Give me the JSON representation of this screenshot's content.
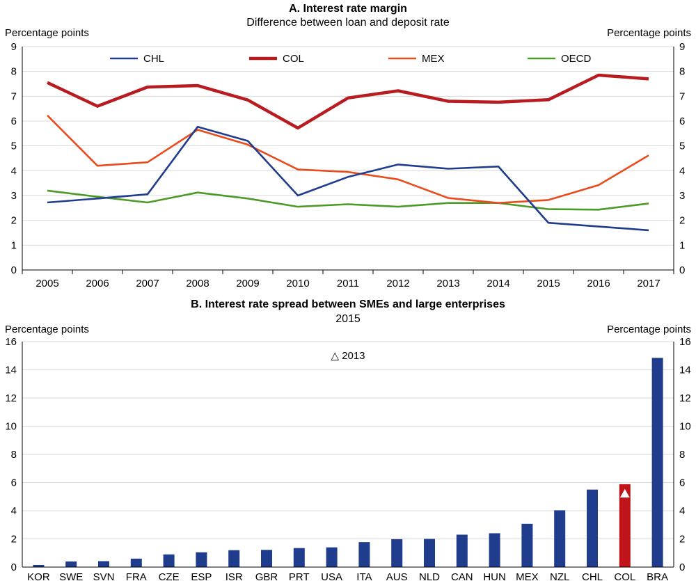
{
  "chart_data": [
    {
      "type": "line",
      "title": "A. Interest rate margin",
      "subtitle": "Difference between loan and deposit rate",
      "ylabel_left": "Percentage points",
      "ylabel_right": "Percentage points",
      "ylim": [
        0,
        9
      ],
      "yticks": [
        "0",
        "1",
        "2",
        "3",
        "4",
        "5",
        "6",
        "7",
        "8",
        "9"
      ],
      "grid": true,
      "legend_position": "top",
      "x": [
        "2005",
        "2006",
        "2007",
        "2008",
        "2009",
        "2010",
        "2011",
        "2012",
        "2013",
        "2014",
        "2015",
        "2016",
        "2017"
      ],
      "series": [
        {
          "name": "CHL",
          "color": "#1f3d8c",
          "values": [
            2.72,
            2.88,
            3.05,
            5.77,
            5.2,
            3.0,
            3.75,
            4.25,
            4.08,
            4.17,
            1.9,
            1.75,
            1.6
          ]
        },
        {
          "name": "COL",
          "color": "#b81c21",
          "values": [
            7.55,
            6.6,
            7.37,
            7.43,
            6.85,
            5.72,
            6.93,
            7.22,
            6.8,
            6.76,
            6.86,
            7.85,
            7.7
          ]
        },
        {
          "name": "MEX",
          "color": "#ea4b1c",
          "values": [
            6.23,
            4.2,
            4.34,
            5.65,
            5.05,
            4.05,
            3.95,
            3.65,
            2.9,
            2.7,
            2.82,
            3.42,
            4.62
          ]
        },
        {
          "name": "OECD",
          "color": "#4d9a27",
          "values": [
            3.2,
            2.95,
            2.72,
            3.12,
            2.88,
            2.55,
            2.65,
            2.55,
            2.7,
            2.7,
            2.45,
            2.43,
            2.68
          ]
        }
      ]
    },
    {
      "type": "bar",
      "title": "B. Interest rate spread between SMEs and large enterprises",
      "subtitle": "2015",
      "ylabel_left": "Percentage points",
      "ylabel_right": "Percentage points",
      "ylim": [
        0,
        16
      ],
      "yticks": [
        "0",
        "2",
        "4",
        "6",
        "8",
        "10",
        "12",
        "14",
        "16"
      ],
      "grid": true,
      "legend_label": "△ 2013",
      "bar_color": "#1f3d8c",
      "highlight_color": "#c0141a",
      "categories": [
        "KOR",
        "SWE",
        "SVN",
        "FRA",
        "CZE",
        "ESP",
        "ISR",
        "GBR",
        "PRT",
        "USA",
        "ITA",
        "AUS",
        "NLD",
        "CAN",
        "HUN",
        "MEX",
        "NZL",
        "CHL",
        "COL",
        "BRA"
      ],
      "values": [
        0.15,
        0.4,
        0.42,
        0.6,
        0.9,
        1.05,
        1.2,
        1.22,
        1.35,
        1.4,
        1.77,
        1.98,
        2.0,
        2.3,
        2.4,
        3.07,
        4.03,
        5.5,
        5.88,
        14.85
      ],
      "highlight": "COL",
      "markers_2013": [
        {
          "category": "COL",
          "value": 5.2
        }
      ]
    }
  ]
}
